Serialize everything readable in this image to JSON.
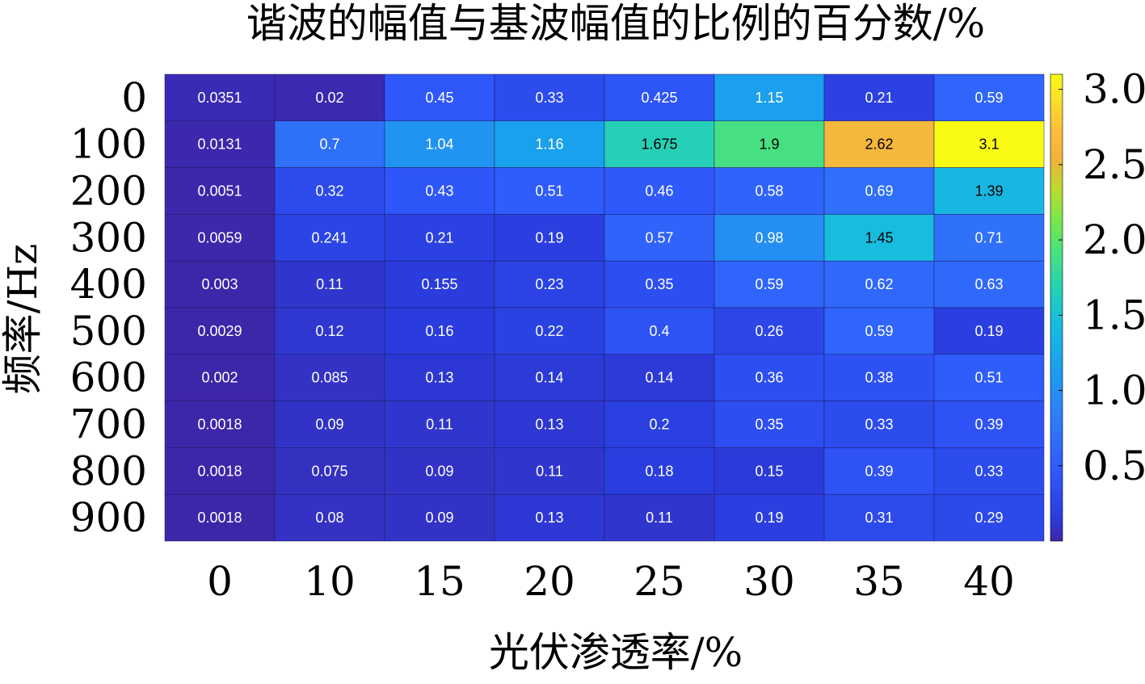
{
  "chart_data": {
    "type": "heatmap",
    "title": "谐波的幅值与基波幅值的比例的百分数/%",
    "xlabel": "光伏渗透率/%",
    "ylabel": "频率/Hz",
    "x_categories": [
      "0",
      "10",
      "15",
      "20",
      "25",
      "30",
      "35",
      "40"
    ],
    "y_categories": [
      "0",
      "100",
      "200",
      "300",
      "400",
      "500",
      "600",
      "700",
      "800",
      "900"
    ],
    "values": [
      [
        "0.0351",
        "0.02",
        "0.45",
        "0.33",
        "0.425",
        "1.15",
        "0.21",
        "0.59"
      ],
      [
        "0.0131",
        "0.7",
        "1.04",
        "1.16",
        "1.675",
        "1.9",
        "2.62",
        "3.1"
      ],
      [
        "0.0051",
        "0.32",
        "0.43",
        "0.51",
        "0.46",
        "0.58",
        "0.69",
        "1.39"
      ],
      [
        "0.0059",
        "0.241",
        "0.21",
        "0.19",
        "0.57",
        "0.98",
        "1.45",
        "0.71"
      ],
      [
        "0.003",
        "0.11",
        "0.155",
        "0.23",
        "0.35",
        "0.59",
        "0.62",
        "0.63"
      ],
      [
        "0.0029",
        "0.12",
        "0.16",
        "0.22",
        "0.4",
        "0.26",
        "0.59",
        "0.19"
      ],
      [
        "0.002",
        "0.085",
        "0.13",
        "0.14",
        "0.14",
        "0.36",
        "0.38",
        "0.51"
      ],
      [
        "0.0018",
        "0.09",
        "0.11",
        "0.13",
        "0.2",
        "0.35",
        "0.33",
        "0.39"
      ],
      [
        "0.0018",
        "0.075",
        "0.09",
        "0.11",
        "0.18",
        "0.15",
        "0.39",
        "0.33"
      ],
      [
        "0.0018",
        "0.08",
        "0.09",
        "0.13",
        "0.11",
        "0.19",
        "0.31",
        "0.29"
      ]
    ],
    "colorbar": {
      "min": 0,
      "max": 3.1,
      "ticks": [
        "0.5",
        "1.0",
        "1.5",
        "2.0",
        "2.5",
        "3.0"
      ],
      "colormap": "parula"
    }
  }
}
